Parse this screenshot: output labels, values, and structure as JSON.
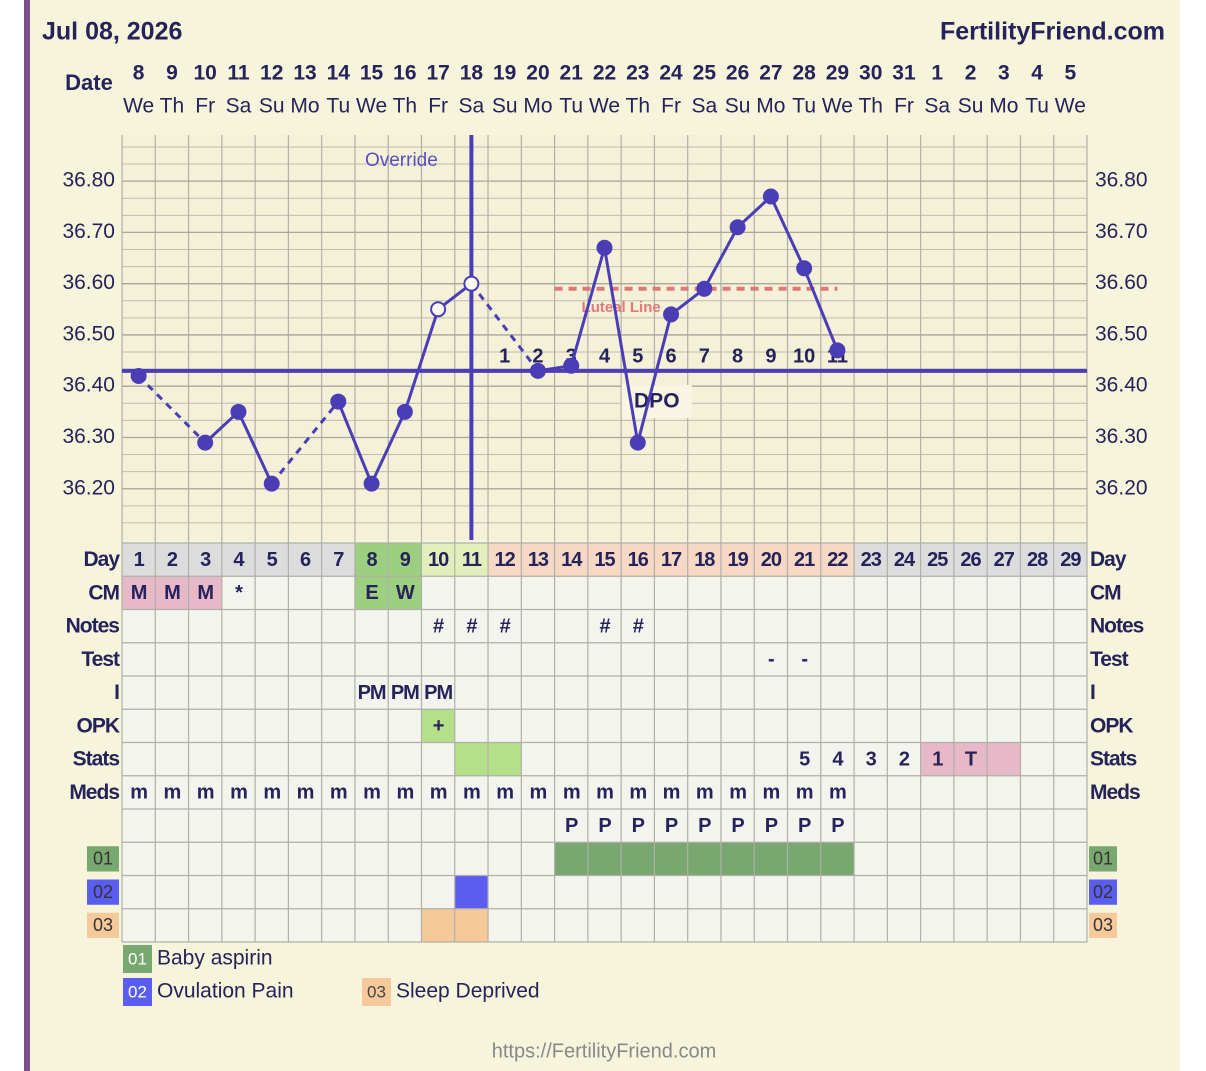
{
  "header": {
    "date": "Jul 08, 2026",
    "site": "FertilityFriend.com"
  },
  "chart_data": {
    "type": "line",
    "date_label": "Date",
    "categories": [
      "8",
      "9",
      "10",
      "11",
      "12",
      "13",
      "14",
      "15",
      "16",
      "17",
      "18",
      "19",
      "20",
      "21",
      "22",
      "23",
      "24",
      "25",
      "26",
      "27",
      "28",
      "29",
      "30",
      "31",
      "1",
      "2",
      "3",
      "4",
      "5"
    ],
    "weekdays": [
      "We",
      "Th",
      "Fr",
      "Sa",
      "Su",
      "Mo",
      "Tu",
      "We",
      "Th",
      "Fr",
      "Sa",
      "Su",
      "Mo",
      "Tu",
      "We",
      "Th",
      "Fr",
      "Sa",
      "Su",
      "Mo",
      "Tu",
      "We",
      "Th",
      "Fr",
      "Sa",
      "Su",
      "Mo",
      "Tu",
      "We"
    ],
    "values": [
      36.42,
      null,
      36.29,
      36.35,
      36.21,
      null,
      36.37,
      36.21,
      36.35,
      36.55,
      36.6,
      null,
      36.43,
      36.44,
      36.67,
      36.29,
      36.54,
      36.59,
      36.71,
      36.77,
      36.63,
      36.47,
      null,
      null,
      null,
      null,
      null,
      null,
      null
    ],
    "color": "#4b3db5",
    "open_days": [
      10,
      11
    ],
    "ylim": [
      36.1,
      36.89
    ],
    "yticks": [
      {
        "value": 36.2,
        "label": "36.20"
      },
      {
        "value": 36.3,
        "label": "36.30"
      },
      {
        "value": 36.4,
        "label": "36.40"
      },
      {
        "value": 36.5,
        "label": "36.50"
      },
      {
        "value": 36.6,
        "label": "36.60"
      },
      {
        "value": 36.7,
        "label": "36.70"
      },
      {
        "value": 36.8,
        "label": "36.80"
      }
    ],
    "grid": true,
    "coverline": 36.43,
    "ovulation_day": 11,
    "override_label": "Override",
    "luteal": {
      "label": "Luteal Line",
      "value": 36.59,
      "from_day": 14,
      "to_day": 22,
      "color": "#e07878"
    },
    "dpo": {
      "label": "DPO",
      "start_day": 12,
      "values": [
        1,
        2,
        3,
        4,
        5,
        6,
        7,
        8,
        9,
        10,
        11
      ]
    }
  },
  "table": {
    "rows": [
      {
        "label": "Day",
        "cells": [
          1,
          2,
          3,
          4,
          5,
          6,
          7,
          8,
          9,
          10,
          11,
          12,
          13,
          14,
          15,
          16,
          17,
          18,
          19,
          20,
          21,
          22,
          23,
          24,
          25,
          26,
          27,
          28,
          29
        ],
        "fills": [
          "#dcdcdc",
          "#dcdcdc",
          "#dcdcdc",
          "#dcdcdc",
          "#dcdcdc",
          "#dcdcdc",
          "#dcdcdc",
          "#9ccf80",
          "#9ccf80",
          "#e2efbb",
          "#e2efbb",
          "#f6d8c4",
          "#f6d8c4",
          "#f6d8c4",
          "#f6d8c4",
          "#f6d8c4",
          "#f6d8c4",
          "#f6d8c4",
          "#f6d8c4",
          "#f6d8c4",
          "#f6d8c4",
          "#f6d8c4",
          "#dcdcdc",
          "#dcdcdc",
          "#dcdcdc",
          "#dcdcdc",
          "#dcdcdc",
          "#dcdcdc",
          "#dcdcdc"
        ]
      },
      {
        "label": "CM",
        "cells": [
          "M",
          "M",
          "M",
          "*",
          null,
          null,
          null,
          "E",
          "W",
          null,
          null,
          null,
          null,
          null,
          null,
          null,
          null,
          null,
          null,
          null,
          null,
          null,
          null,
          null,
          null,
          null,
          null,
          null,
          null
        ],
        "fills": [
          "#e6b8c8",
          "#e6b8c8",
          "#e6b8c8",
          null,
          null,
          null,
          null,
          "#9ccf80",
          "#9ccf80",
          null,
          null,
          null,
          null,
          null,
          null,
          null,
          null,
          null,
          null,
          null,
          null,
          null,
          null,
          null,
          null,
          null,
          null,
          null,
          null
        ]
      },
      {
        "label": "Notes",
        "cells": [
          null,
          null,
          null,
          null,
          null,
          null,
          null,
          null,
          null,
          "#",
          "#",
          "#",
          null,
          null,
          "#",
          "#",
          null,
          null,
          null,
          null,
          null,
          null,
          null,
          null,
          null,
          null,
          null,
          null,
          null
        ]
      },
      {
        "label": "Test",
        "cells": [
          null,
          null,
          null,
          null,
          null,
          null,
          null,
          null,
          null,
          null,
          null,
          null,
          null,
          null,
          null,
          null,
          null,
          null,
          null,
          "-",
          "-",
          null,
          null,
          null,
          null,
          null,
          null,
          null,
          null
        ]
      },
      {
        "label": "I",
        "cells": [
          null,
          null,
          null,
          null,
          null,
          null,
          null,
          "PM",
          "PM",
          "PM",
          null,
          null,
          null,
          null,
          null,
          null,
          null,
          null,
          null,
          null,
          null,
          null,
          null,
          null,
          null,
          null,
          null,
          null,
          null
        ]
      },
      {
        "label": "OPK",
        "cells": [
          null,
          null,
          null,
          null,
          null,
          null,
          null,
          null,
          null,
          "+",
          null,
          null,
          null,
          null,
          null,
          null,
          null,
          null,
          null,
          null,
          null,
          null,
          null,
          null,
          null,
          null,
          null,
          null,
          null
        ],
        "fills": [
          null,
          null,
          null,
          null,
          null,
          null,
          null,
          null,
          null,
          "#b5e08a",
          null,
          null,
          null,
          null,
          null,
          null,
          null,
          null,
          null,
          null,
          null,
          null,
          null,
          null,
          null,
          null,
          null,
          null,
          null
        ]
      },
      {
        "label": "Stats",
        "cells": [
          null,
          null,
          null,
          null,
          null,
          null,
          null,
          null,
          null,
          null,
          null,
          null,
          null,
          null,
          null,
          null,
          null,
          null,
          null,
          null,
          5,
          4,
          3,
          2,
          1,
          "T",
          null,
          null,
          null
        ],
        "fills": [
          null,
          null,
          null,
          null,
          null,
          null,
          null,
          null,
          null,
          null,
          "#b5e08a",
          "#b5e08a",
          null,
          null,
          null,
          null,
          null,
          null,
          null,
          null,
          null,
          null,
          null,
          null,
          "#e6b8c8",
          "#e6b8c8",
          "#e6b8c8",
          null,
          null
        ]
      },
      {
        "label": "Meds",
        "cells": [
          "m",
          "m",
          "m",
          "m",
          "m",
          "m",
          "m",
          "m",
          "m",
          "m",
          "m",
          "m",
          "m",
          "m",
          "m",
          "m",
          "m",
          "m",
          "m",
          "m",
          "m",
          "m",
          null,
          null,
          null,
          null,
          null,
          null,
          null
        ]
      },
      {
        "label": null,
        "cells": [
          null,
          null,
          null,
          null,
          null,
          null,
          null,
          null,
          null,
          null,
          null,
          null,
          null,
          "P",
          "P",
          "P",
          "P",
          "P",
          "P",
          "P",
          "P",
          "P",
          null,
          null,
          null,
          null,
          null,
          null,
          null
        ]
      },
      {
        "label": "01",
        "label_fill": "#78a870",
        "cells": [],
        "fills": [
          null,
          null,
          null,
          null,
          null,
          null,
          null,
          null,
          null,
          null,
          null,
          null,
          null,
          "#78a870",
          "#78a870",
          "#78a870",
          "#78a870",
          "#78a870",
          "#78a870",
          "#78a870",
          "#78a870",
          "#78a870",
          null,
          null,
          null,
          null,
          null,
          null,
          null
        ]
      },
      {
        "label": "02",
        "label_fill": "#5b5cf0",
        "cells": [],
        "fills": [
          null,
          null,
          null,
          null,
          null,
          null,
          null,
          null,
          null,
          null,
          "#5b5cf0",
          null,
          null,
          null,
          null,
          null,
          null,
          null,
          null,
          null,
          null,
          null,
          null,
          null,
          null,
          null,
          null,
          null,
          null
        ]
      },
      {
        "label": "03",
        "label_fill": "#f5c99a",
        "cells": [],
        "fills": [
          null,
          null,
          null,
          null,
          null,
          null,
          null,
          null,
          null,
          "#f5c99a",
          "#f5c99a",
          null,
          null,
          null,
          null,
          null,
          null,
          null,
          null,
          null,
          null,
          null,
          null,
          null,
          null,
          null,
          null,
          null,
          null
        ]
      }
    ]
  },
  "legend": [
    {
      "code": "01",
      "text": "Baby aspirin",
      "color": "#78a870"
    },
    {
      "code": "02",
      "text": "Ovulation Pain",
      "color": "#5b5cf0"
    },
    {
      "code": "03",
      "text": "Sleep Deprived",
      "color": "#f5c99a"
    }
  ],
  "footer": "https://FertilityFriend.com"
}
